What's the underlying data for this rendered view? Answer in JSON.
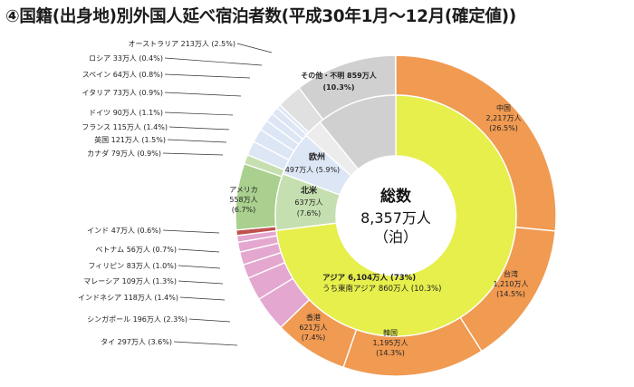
{
  "title": "④国籍(出身地)別外国人延べ宿泊者数(平成30年1月～12月(確定値))",
  "center": {
    "line1": "総数",
    "line2": "8,357万人",
    "line3": "（泊）"
  },
  "colors": {
    "asia": "#f09a52",
    "asia_inner": "#e6ef4c",
    "se_asia": "#e4a7cf",
    "americas": "#a9d08e",
    "europe": "#dde6f5",
    "other": "#d0d0d0",
    "india": "#c0504d"
  },
  "chart_data": {
    "type": "pie",
    "unit": "万人",
    "total": 8357,
    "outer_ring": [
      {
        "key": "china",
        "label": "中国",
        "value": 2217,
        "value_text": "2,217万人",
        "pct_text": "(26.5%)",
        "color": "#f09a52"
      },
      {
        "key": "taiwan",
        "label": "台湾",
        "value": 1210,
        "value_text": "1,210万人",
        "pct_text": "(14.5%)",
        "color": "#f09a52"
      },
      {
        "key": "korea",
        "label": "韓国",
        "value": 1195,
        "value_text": "1,195万人",
        "pct_text": "(14.3%)",
        "color": "#f09a52"
      },
      {
        "key": "hongkong",
        "label": "香港",
        "value": 621,
        "value_text": "621万人",
        "pct_text": "(7.4%)",
        "color": "#f09a52"
      },
      {
        "key": "thailand",
        "label": "タイ 297万人 (3.6%)",
        "value": 297,
        "color": "#e4a7cf"
      },
      {
        "key": "singapore",
        "label": "シンガポール 196万人 (2.3%)",
        "value": 196,
        "color": "#e4a7cf"
      },
      {
        "key": "indonesia",
        "label": "インドネシア 118万人 (1.4%)",
        "value": 118,
        "color": "#e4a7cf"
      },
      {
        "key": "malaysia",
        "label": "マレーシア 109万人 (1.3%)",
        "value": 109,
        "color": "#e4a7cf"
      },
      {
        "key": "philippines",
        "label": "フィリピン 83万人 (1.0%)",
        "value": 83,
        "color": "#e4a7cf"
      },
      {
        "key": "vietnam",
        "label": "ベトナム 56万人 (0.7%)",
        "value": 56,
        "color": "#e4a7cf"
      },
      {
        "key": "india",
        "label": "インド 47万人 (0.6%)",
        "value": 47,
        "color": "#c0504d"
      },
      {
        "key": "usa",
        "label": "アメリカ",
        "value": 558,
        "value_text": "558万人",
        "pct_text": "(6.7%)",
        "color": "#a9d08e"
      },
      {
        "key": "canada",
        "label": "カナダ 79万人 (0.9%)",
        "value": 79,
        "color": "#c5dfb0"
      },
      {
        "key": "uk",
        "label": "英国 121万人 (1.5%)",
        "value": 121,
        "color": "#dde6f5"
      },
      {
        "key": "france",
        "label": "フランス 115万人 (1.4%)",
        "value": 115,
        "color": "#dde6f5"
      },
      {
        "key": "germany",
        "label": "ドイツ 90万人 (1.1%)",
        "value": 90,
        "color": "#dde6f5"
      },
      {
        "key": "italy",
        "label": "イタリア 73万人 (0.9%)",
        "value": 73,
        "color": "#dde6f5"
      },
      {
        "key": "spain",
        "label": "スペイン 64万人 (0.8%)",
        "value": 64,
        "color": "#dde6f5"
      },
      {
        "key": "russia",
        "label": "ロシア 33万人 (0.4%)",
        "value": 33,
        "color": "#dde6f5"
      },
      {
        "key": "australia",
        "label": "オーストラリア 213万人 (2.5%)",
        "value": 213,
        "color": "#e0e0e0"
      },
      {
        "key": "other",
        "label": "その他・不明",
        "value": 859,
        "value_text": "859万人",
        "pct_text": "(10.3%)",
        "color": "#d0d0d0"
      }
    ],
    "inner_ring": [
      {
        "key": "asia",
        "value": 6104,
        "color": "#e6ef4c",
        "label": "アジア 6,104万人 (73%)",
        "sub_label": "うち東南アジア 860万人 (10.3%)"
      },
      {
        "key": "north_america",
        "value": 637,
        "color": "#c5dfb0",
        "label": "北米",
        "value_text": "637万人",
        "pct_text": "(7.6%)"
      },
      {
        "key": "europe",
        "value": 497,
        "color": "#dde6f5",
        "label": "欧州",
        "value_text": "497万人 (5.9%)"
      },
      {
        "key": "oceania",
        "value": 213,
        "color": "#ececec"
      },
      {
        "key": "other",
        "value": 906,
        "color": "#d0d0d0"
      }
    ]
  }
}
